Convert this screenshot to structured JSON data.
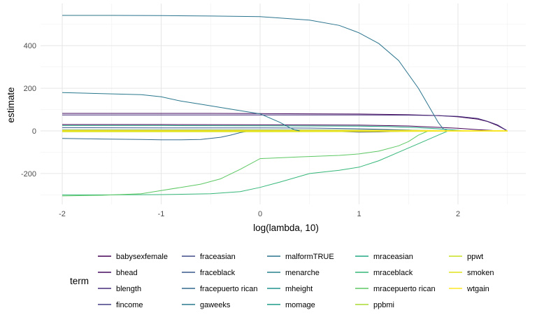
{
  "chart_data": {
    "type": "line",
    "xlabel": "log(lambda, 10)",
    "ylabel": "estimate",
    "xlim": [
      -2.0,
      2.5
    ],
    "ylim": [
      -310,
      550
    ],
    "x_ticks": [
      -2,
      -1,
      0,
      1,
      2
    ],
    "y_ticks": [
      -200,
      0,
      200,
      400
    ],
    "grid": true,
    "legend_title": "term",
    "legend_position": "bottom",
    "series": [
      {
        "name": "babysexfemale",
        "color": "#440154",
        "x": [
          -2,
          -1,
          0,
          1,
          1.5,
          2,
          2.2,
          2.35,
          2.5
        ],
        "y": [
          30,
          30,
          29,
          27,
          23,
          12,
          6,
          2,
          0
        ]
      },
      {
        "name": "bhead",
        "color": "#460B5E",
        "x": [
          -2,
          -1,
          -0.5,
          0,
          0.5,
          1,
          1.5,
          1.8,
          2.0,
          2.2,
          2.3,
          2.4,
          2.5
        ],
        "y": [
          82,
          82,
          82,
          81,
          80,
          79,
          76,
          72,
          66,
          55,
          44,
          25,
          0
        ]
      },
      {
        "name": "blength",
        "color": "#472D7B",
        "x": [
          -2,
          -1,
          0,
          0.5,
          1,
          1.5,
          1.8,
          2.0,
          2.2,
          2.3,
          2.4,
          2.5
        ],
        "y": [
          75,
          75,
          75,
          75,
          75,
          74,
          72,
          68,
          58,
          45,
          28,
          0
        ]
      },
      {
        "name": "fincome",
        "color": "#433E85",
        "x": [
          -2,
          0,
          1,
          1.5,
          2,
          2.5
        ],
        "y": [
          1,
          1,
          1,
          1,
          0.5,
          0
        ]
      },
      {
        "name": "fraceasian",
        "color": "#3E4A89",
        "x": [
          -2,
          -1,
          0,
          0.4,
          0.8,
          1.0,
          1.2,
          1.4,
          1.5
        ],
        "y": [
          2,
          2,
          1,
          0,
          -3,
          -6,
          -5,
          -2,
          0
        ]
      },
      {
        "name": "fraceblack",
        "color": "#38598C",
        "x": [
          -2,
          -1,
          0,
          0.5,
          1,
          1.5,
          1.7
        ],
        "y": [
          15,
          14,
          14,
          13,
          10,
          4,
          0
        ]
      },
      {
        "name": "fracepuerto rican",
        "color": "#31688E",
        "x": [
          -2,
          -1.6,
          -1.2,
          -1.0,
          -0.8,
          -0.6,
          -0.4,
          -0.3,
          -0.2,
          -0.1
        ],
        "y": [
          -35,
          -38,
          -40,
          -42,
          -42,
          -40,
          -30,
          -20,
          -8,
          0
        ]
      },
      {
        "name": "malformTRUE",
        "color": "#2B748E",
        "x": [
          -2,
          -1.5,
          -1,
          -0.5,
          0,
          0.5,
          0.8,
          1.0,
          1.2,
          1.4,
          1.6,
          1.7,
          1.8,
          1.85,
          1.9
        ],
        "y": [
          542,
          542,
          541,
          539,
          536,
          520,
          495,
          460,
          410,
          330,
          200,
          120,
          40,
          10,
          0
        ]
      },
      {
        "name": "menarche",
        "color": "#26828E",
        "x": [
          -2,
          -1,
          0,
          1,
          1.5,
          2,
          2.5
        ],
        "y": [
          -2,
          -2,
          -2,
          -1.5,
          -1,
          -0.5,
          0
        ]
      },
      {
        "name": "mheight",
        "color": "#21908D",
        "x": [
          -2,
          -1,
          0,
          1,
          1.5,
          2,
          2.5
        ],
        "y": [
          5,
          5,
          5,
          4,
          3,
          1,
          0
        ]
      },
      {
        "name": "momage",
        "color": "#1E9C89",
        "x": [
          -2,
          -1,
          0,
          1,
          1.5,
          2,
          2.5
        ],
        "y": [
          3,
          3,
          3,
          2,
          1,
          0,
          0
        ]
      },
      {
        "name": "mraceasian",
        "color": "#22A884",
        "x": [
          -2,
          -1,
          0,
          0.5,
          1,
          1.3,
          1.6,
          1.8,
          2.0,
          2.1
        ],
        "y": [
          25,
          25,
          24,
          23,
          22,
          20,
          15,
          10,
          3,
          0
        ]
      },
      {
        "name": "mraceblack",
        "color": "#35B779",
        "x": [
          -2,
          -1.5,
          -1,
          -0.5,
          -0.2,
          0,
          0.2,
          0.5,
          0.8,
          1.0,
          1.2,
          1.4,
          1.6,
          1.8,
          1.9
        ],
        "y": [
          -300,
          -300,
          -299,
          -295,
          -285,
          -265,
          -240,
          -200,
          -185,
          -170,
          -140,
          -100,
          -60,
          -20,
          0
        ]
      },
      {
        "name": "mracepuerto rican",
        "color": "#5DC863",
        "x": [
          -2,
          -1.6,
          -1.2,
          -0.8,
          -0.6,
          -0.4,
          -0.2,
          0,
          0.4,
          0.8,
          1.0,
          1.2,
          1.4,
          1.5,
          1.6,
          1.7
        ],
        "y": [
          -305,
          -302,
          -295,
          -265,
          -250,
          -225,
          -180,
          -130,
          -122,
          -115,
          -108,
          -95,
          -70,
          -50,
          -20,
          0
        ]
      },
      {
        "name": "ppbmi",
        "color": "#AADC32",
        "x": [
          -2,
          -1,
          0,
          1,
          1.5,
          2,
          2.5
        ],
        "y": [
          1,
          1,
          1,
          1,
          0.5,
          0,
          0
        ]
      },
      {
        "name": "ppwt",
        "color": "#C8E020",
        "x": [
          -2,
          -1,
          0,
          1,
          1.5,
          2,
          2.5
        ],
        "y": [
          -3,
          -3,
          -3,
          -2,
          -1,
          0,
          0
        ]
      },
      {
        "name": "smoken",
        "color": "#E0E31C",
        "x": [
          -2,
          -1,
          0,
          1,
          1.5,
          2,
          2.5
        ],
        "y": [
          -1,
          -1,
          -1,
          -1,
          -0.5,
          0,
          0
        ]
      },
      {
        "name": "wtgain",
        "color": "#FDE725",
        "x": [
          -2,
          -1,
          0,
          1,
          1.5,
          2,
          2.5
        ],
        "y": [
          2,
          2,
          2,
          1.5,
          1,
          0,
          0
        ]
      },
      {
        "name": "gaweeks",
        "color": "#2A788E",
        "x": [
          -2,
          -1.6,
          -1.2,
          -1.0,
          -0.8,
          -0.6,
          -0.4,
          -0.2,
          0,
          0.2,
          0.3,
          0.35,
          0.4
        ],
        "y": [
          180,
          175,
          170,
          160,
          140,
          125,
          110,
          95,
          80,
          40,
          15,
          5,
          0
        ]
      }
    ],
    "legend_order": [
      "babysexfemale",
      "bhead",
      "blength",
      "fincome",
      "fraceasian",
      "fraceblack",
      "fracepuerto rican",
      "gaweeks",
      "malformTRUE",
      "menarche",
      "mheight",
      "momage",
      "mraceasian",
      "mraceblack",
      "mracepuerto rican",
      "ppbmi",
      "ppwt",
      "smoken",
      "wtgain"
    ]
  }
}
